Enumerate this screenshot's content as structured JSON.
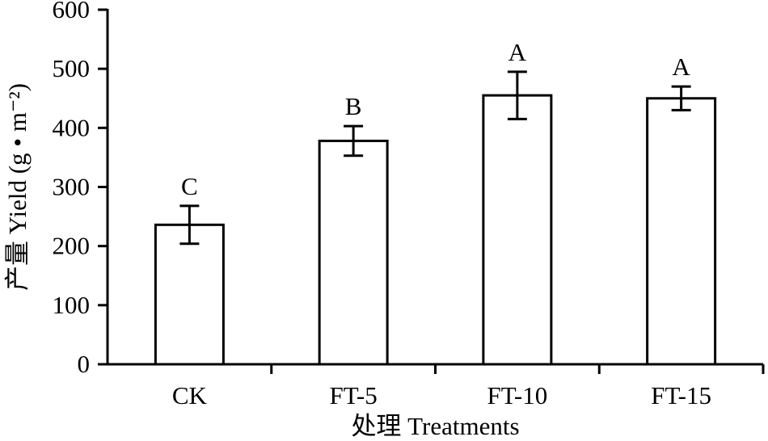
{
  "chart_data": {
    "type": "bar",
    "categories": [
      "CK",
      "FT-5",
      "FT-10",
      "FT-15"
    ],
    "values": [
      236,
      378,
      455,
      450
    ],
    "errors": [
      32,
      25,
      40,
      20
    ],
    "significance": [
      "C",
      "B",
      "A",
      "A"
    ],
    "xlabel": "处理 Treatments",
    "ylabel": "产量 Yield (g • m⁻²)",
    "ylim": [
      0,
      600
    ],
    "yticks": [
      0,
      100,
      200,
      300,
      400,
      500,
      600
    ],
    "grid": false,
    "bar_color": "#ffffff",
    "bar_edge_color": "#000000"
  }
}
